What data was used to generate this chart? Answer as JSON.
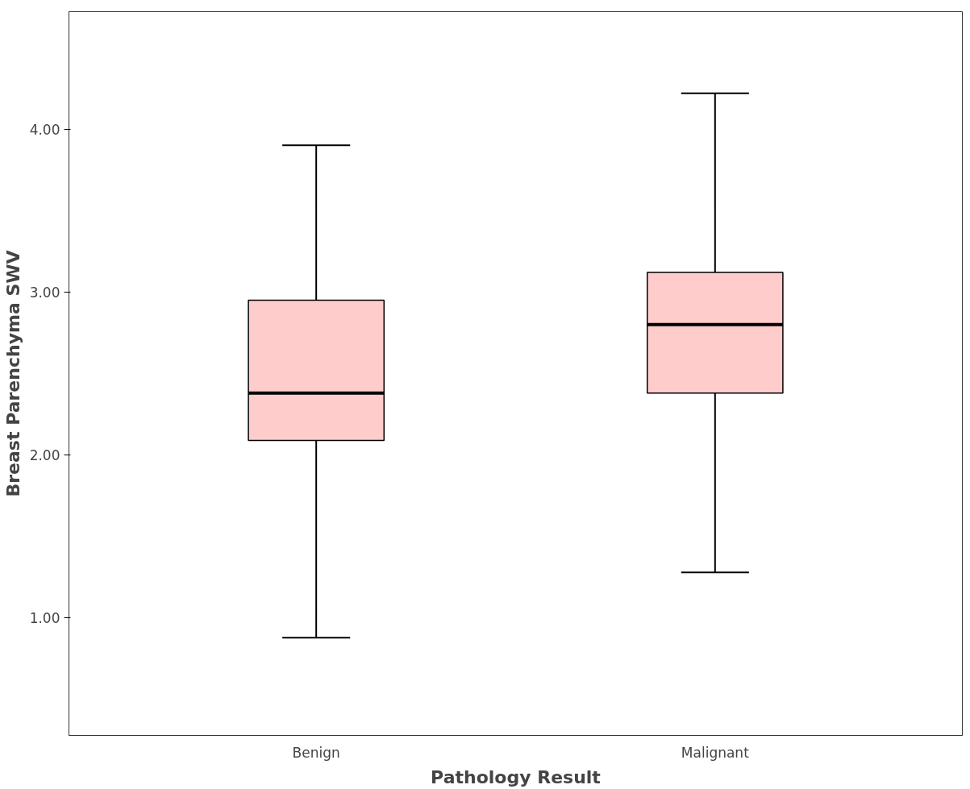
{
  "chart_data": {
    "type": "box",
    "xlabel": "Pathology Result",
    "ylabel": "Breast Parenchyma SWV",
    "categories": [
      "Benign",
      "Malignant"
    ],
    "boxes": [
      {
        "low": 0.88,
        "q1": 2.09,
        "median": 2.38,
        "q3": 2.95,
        "high": 3.9
      },
      {
        "low": 1.28,
        "q1": 2.38,
        "median": 2.8,
        "q3": 3.12,
        "high": 4.22
      }
    ],
    "color": "#ffcccc",
    "ylim": [
      0.28,
      4.72
    ],
    "yticks": [
      {
        "value": 1,
        "label": "1.00"
      },
      {
        "value": 2,
        "label": "2.00"
      },
      {
        "value": 3,
        "label": "3.00"
      },
      {
        "value": 4,
        "label": "4.00"
      }
    ],
    "grid": false
  }
}
